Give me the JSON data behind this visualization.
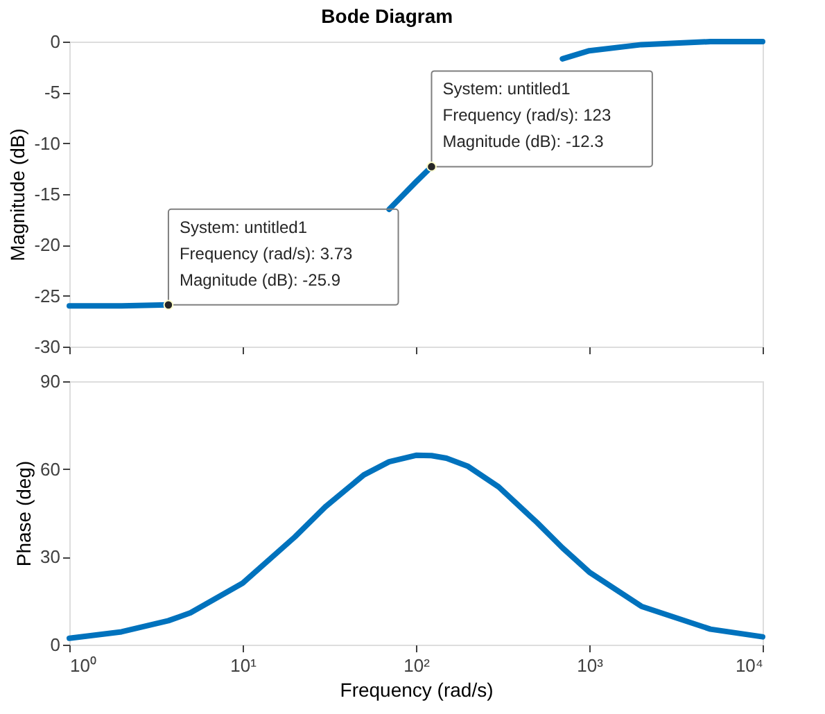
{
  "chart_data": [
    {
      "type": "line",
      "title": "Bode Diagram",
      "ylabel": "Magnitude (dB)",
      "log": "x",
      "grid": false,
      "marker": "none",
      "line_style": "solid",
      "tick_labels": "y",
      "x": [
        1,
        2,
        3.73,
        5,
        10,
        20,
        30,
        50,
        70,
        100,
        123,
        150,
        200,
        300,
        500,
        700,
        1000,
        2000,
        5000,
        10000
      ],
      "series": [
        {
          "color": "#0072bd",
          "values": [
            -26.0,
            -26.0,
            -25.9,
            null,
            null,
            null,
            null,
            null,
            -16.5,
            -13.8,
            -12.3,
            null,
            null,
            null,
            null,
            -1.7,
            -0.9,
            -0.3,
            0,
            0
          ]
        }
      ],
      "xlim": [
        1,
        10000
      ],
      "xticks": [
        {
          "value": 1,
          "label": null
        },
        {
          "value": 10,
          "label": null
        },
        {
          "value": 100,
          "label": null
        },
        {
          "value": 1000,
          "label": null
        },
        {
          "value": 10000,
          "label": null
        }
      ],
      "ylim": [
        -30,
        0
      ],
      "yticks": [
        -30,
        -25,
        -20,
        -15,
        -10,
        -5,
        0
      ],
      "annotations": [
        {
          "text": "System: untitled1\nFrequency (rad/s): 3.73\nMagnitude (dB): -25.9",
          "x": 3.73,
          "y": -25.9
        },
        {
          "text": "System: untitled1\nFrequency (rad/s): 123\nMagnitude (dB): -12.3",
          "x": 123,
          "y": -12.3
        }
      ]
    },
    {
      "type": "line",
      "xlabel": "Frequency  (rad/s)",
      "ylabel": "Phase (deg)",
      "log": "x",
      "grid": false,
      "marker": "none",
      "line_style": "solid",
      "x": [
        1,
        2,
        3.73,
        5,
        10,
        20,
        30,
        50,
        70,
        100,
        123,
        150,
        200,
        300,
        500,
        700,
        1000,
        2000,
        5000,
        10000
      ],
      "series": [
        {
          "color": "#0072bd",
          "values": [
            2.2,
            4.4,
            8.2,
            10.9,
            21.0,
            36.8,
            47.1,
            58.0,
            62.5,
            64.7,
            64.6,
            63.7,
            60.9,
            53.9,
            41.7,
            33.1,
            24.8,
            13.1,
            5.3,
            2.7
          ]
        }
      ],
      "xlim": [
        1,
        10000
      ],
      "xticks": [
        {
          "value": 1,
          "label": "10⁰"
        },
        {
          "value": 10,
          "label": "10¹"
        },
        {
          "value": 100,
          "label": "10²"
        },
        {
          "value": 1000,
          "label": "10³"
        },
        {
          "value": 10000,
          "label": "10⁴"
        }
      ],
      "ylim": [
        0,
        90
      ],
      "yticks": [
        0,
        30,
        60,
        90
      ]
    }
  ]
}
